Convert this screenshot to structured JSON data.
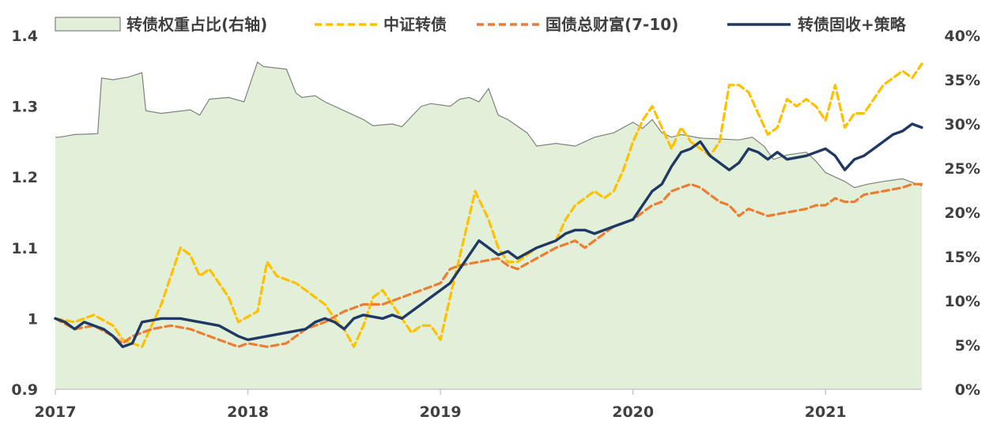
{
  "chart_data": {
    "type": "line",
    "x_ticks": [
      "2017",
      "2018",
      "2019",
      "2020",
      "2021"
    ],
    "x_range": [
      2017.0,
      2021.5
    ],
    "y_left": {
      "ticks": [
        "0.9",
        "1",
        "1.1",
        "1.2",
        "1.3",
        "1.4"
      ],
      "range": [
        0.9,
        1.4
      ]
    },
    "y_right": {
      "ticks": [
        "0%",
        "5%",
        "10%",
        "15%",
        "20%",
        "25%",
        "30%",
        "35%",
        "40%"
      ],
      "range": [
        0,
        40
      ]
    },
    "legend": {
      "placement": "top",
      "entries": [
        "转债权重占比(右轴)",
        "中证转债",
        "国债总财富(7-10)",
        "转债固收+策略"
      ]
    },
    "grid": false,
    "series": [
      {
        "name": "转债权重占比(右轴)",
        "style": "area",
        "axis": "right",
        "color_fill": "#e2f0d9",
        "color_line": "#808080",
        "x": [
          2017.0,
          2017.02,
          2017.1,
          2017.22,
          2017.24,
          2017.3,
          2017.38,
          2017.45,
          2017.47,
          2017.55,
          2017.7,
          2017.75,
          2017.8,
          2017.9,
          2017.98,
          2018.05,
          2018.08,
          2018.2,
          2018.25,
          2018.28,
          2018.35,
          2018.4,
          2018.5,
          2018.6,
          2018.65,
          2018.75,
          2018.8,
          2018.9,
          2018.95,
          2019.05,
          2019.1,
          2019.15,
          2019.2,
          2019.25,
          2019.3,
          2019.35,
          2019.45,
          2019.5,
          2019.6,
          2019.7,
          2019.8,
          2019.9,
          2020.0,
          2020.05,
          2020.1,
          2020.15,
          2020.2,
          2020.25,
          2020.35,
          2020.45,
          2020.55,
          2020.62,
          2020.68,
          2020.73,
          2020.8,
          2020.9,
          2020.95,
          2021.0,
          2021.05,
          2021.1,
          2021.15,
          2021.22,
          2021.3,
          2021.4,
          2021.5
        ],
        "values": [
          28.5,
          28.5,
          28.8,
          28.9,
          35.2,
          35.0,
          35.3,
          35.8,
          31.5,
          31.2,
          31.6,
          31.0,
          32.8,
          33.0,
          32.5,
          37.0,
          36.5,
          36.2,
          33.5,
          33.0,
          33.2,
          32.5,
          31.5,
          30.5,
          29.8,
          30.0,
          29.7,
          32.0,
          32.3,
          32.0,
          32.8,
          33.0,
          32.5,
          34.0,
          31.0,
          30.5,
          29.0,
          27.5,
          27.8,
          27.5,
          28.5,
          29.0,
          30.2,
          29.5,
          30.5,
          29.0,
          28.5,
          28.8,
          28.4,
          28.3,
          28.2,
          28.5,
          27.5,
          26.0,
          26.5,
          26.8,
          25.8,
          24.5,
          24.0,
          23.5,
          22.8,
          23.2,
          23.5,
          23.8,
          23.0
        ]
      },
      {
        "name": "中证转债",
        "style": "dashed",
        "axis": "left",
        "color": "#ffc000",
        "x": [
          2017.0,
          2017.1,
          2017.2,
          2017.3,
          2017.35,
          2017.45,
          2017.55,
          2017.6,
          2017.65,
          2017.7,
          2017.75,
          2017.8,
          2017.9,
          2017.95,
          2018.05,
          2018.1,
          2018.15,
          2018.25,
          2018.35,
          2018.4,
          2018.45,
          2018.5,
          2018.55,
          2018.6,
          2018.65,
          2018.7,
          2018.8,
          2018.85,
          2018.9,
          2018.95,
          2019.0,
          2019.05,
          2019.12,
          2019.18,
          2019.25,
          2019.3,
          2019.35,
          2019.4,
          2019.5,
          2019.6,
          2019.65,
          2019.7,
          2019.75,
          2019.8,
          2019.85,
          2019.9,
          2019.95,
          2020.0,
          2020.05,
          2020.1,
          2020.15,
          2020.2,
          2020.25,
          2020.3,
          2020.4,
          2020.45,
          2020.5,
          2020.55,
          2020.6,
          2020.65,
          2020.7,
          2020.75,
          2020.8,
          2020.85,
          2020.9,
          2020.95,
          2021.0,
          2021.05,
          2021.1,
          2021.15,
          2021.2,
          2021.25,
          2021.3,
          2021.35,
          2021.4,
          2021.45,
          2021.5
        ],
        "values": [
          1.0,
          0.995,
          1.005,
          0.99,
          0.97,
          0.96,
          1.02,
          1.06,
          1.1,
          1.09,
          1.06,
          1.07,
          1.03,
          0.995,
          1.01,
          1.08,
          1.06,
          1.05,
          1.03,
          1.02,
          1.0,
          0.985,
          0.96,
          0.99,
          1.03,
          1.04,
          1.0,
          0.98,
          0.99,
          0.99,
          0.97,
          1.03,
          1.11,
          1.18,
          1.14,
          1.1,
          1.08,
          1.08,
          1.1,
          1.11,
          1.14,
          1.16,
          1.17,
          1.18,
          1.17,
          1.18,
          1.21,
          1.25,
          1.28,
          1.3,
          1.27,
          1.24,
          1.27,
          1.25,
          1.23,
          1.25,
          1.33,
          1.33,
          1.32,
          1.29,
          1.26,
          1.27,
          1.31,
          1.3,
          1.31,
          1.3,
          1.28,
          1.33,
          1.27,
          1.29,
          1.29,
          1.31,
          1.33,
          1.34,
          1.35,
          1.34,
          1.36
        ]
      },
      {
        "name": "国债总财富(7-10)",
        "style": "dashed",
        "axis": "left",
        "color": "#ed7d31",
        "x": [
          2017.0,
          2017.1,
          2017.2,
          2017.3,
          2017.35,
          2017.4,
          2017.5,
          2017.6,
          2017.7,
          2017.8,
          2017.9,
          2017.95,
          2018.0,
          2018.1,
          2018.2,
          2018.3,
          2018.4,
          2018.5,
          2018.6,
          2018.7,
          2018.8,
          2018.9,
          2019.0,
          2019.05,
          2019.1,
          2019.2,
          2019.3,
          2019.35,
          2019.4,
          2019.5,
          2019.6,
          2019.7,
          2019.75,
          2019.8,
          2019.9,
          2020.0,
          2020.05,
          2020.1,
          2020.15,
          2020.2,
          2020.25,
          2020.3,
          2020.35,
          2020.4,
          2020.45,
          2020.5,
          2020.55,
          2020.6,
          2020.65,
          2020.7,
          2020.8,
          2020.9,
          2020.95,
          2021.0,
          2021.05,
          2021.1,
          2021.15,
          2021.2,
          2021.3,
          2021.4,
          2021.45,
          2021.5
        ],
        "values": [
          1.0,
          0.985,
          0.99,
          0.975,
          0.965,
          0.975,
          0.985,
          0.99,
          0.985,
          0.975,
          0.965,
          0.96,
          0.965,
          0.96,
          0.965,
          0.985,
          0.995,
          1.01,
          1.02,
          1.02,
          1.03,
          1.04,
          1.05,
          1.07,
          1.075,
          1.08,
          1.085,
          1.075,
          1.07,
          1.085,
          1.1,
          1.11,
          1.1,
          1.11,
          1.13,
          1.14,
          1.15,
          1.16,
          1.165,
          1.18,
          1.185,
          1.19,
          1.185,
          1.175,
          1.165,
          1.16,
          1.145,
          1.155,
          1.15,
          1.145,
          1.15,
          1.155,
          1.16,
          1.16,
          1.17,
          1.165,
          1.165,
          1.175,
          1.18,
          1.185,
          1.19,
          1.19
        ]
      },
      {
        "name": "转债固收+策略",
        "style": "solid",
        "axis": "left",
        "color": "#1f3864",
        "x": [
          2017.0,
          2017.05,
          2017.1,
          2017.15,
          2017.2,
          2017.25,
          2017.3,
          2017.35,
          2017.4,
          2017.45,
          2017.55,
          2017.65,
          2017.75,
          2017.85,
          2017.95,
          2018.0,
          2018.1,
          2018.2,
          2018.3,
          2018.35,
          2018.4,
          2018.45,
          2018.5,
          2018.55,
          2018.6,
          2018.7,
          2018.75,
          2018.8,
          2018.85,
          2018.9,
          2018.95,
          2019.0,
          2019.05,
          2019.1,
          2019.15,
          2019.2,
          2019.25,
          2019.3,
          2019.35,
          2019.4,
          2019.5,
          2019.6,
          2019.65,
          2019.7,
          2019.75,
          2019.8,
          2019.9,
          2020.0,
          2020.05,
          2020.1,
          2020.15,
          2020.2,
          2020.25,
          2020.3,
          2020.35,
          2020.4,
          2020.45,
          2020.5,
          2020.55,
          2020.6,
          2020.65,
          2020.7,
          2020.75,
          2020.8,
          2020.9,
          2020.95,
          2021.0,
          2021.05,
          2021.1,
          2021.15,
          2021.2,
          2021.25,
          2021.3,
          2021.35,
          2021.4,
          2021.45,
          2021.5
        ],
        "values": [
          1.0,
          0.995,
          0.985,
          0.995,
          0.99,
          0.985,
          0.975,
          0.96,
          0.965,
          0.995,
          1.0,
          1.0,
          0.995,
          0.99,
          0.975,
          0.97,
          0.975,
          0.98,
          0.985,
          0.995,
          1.0,
          0.995,
          0.985,
          1.0,
          1.005,
          1.0,
          1.005,
          1.0,
          1.01,
          1.02,
          1.03,
          1.04,
          1.05,
          1.07,
          1.09,
          1.11,
          1.1,
          1.09,
          1.095,
          1.085,
          1.1,
          1.11,
          1.12,
          1.125,
          1.125,
          1.12,
          1.13,
          1.14,
          1.16,
          1.18,
          1.19,
          1.215,
          1.235,
          1.24,
          1.25,
          1.23,
          1.22,
          1.21,
          1.22,
          1.24,
          1.235,
          1.225,
          1.235,
          1.225,
          1.23,
          1.235,
          1.24,
          1.23,
          1.21,
          1.225,
          1.23,
          1.24,
          1.25,
          1.26,
          1.265,
          1.275,
          1.27
        ]
      }
    ]
  }
}
